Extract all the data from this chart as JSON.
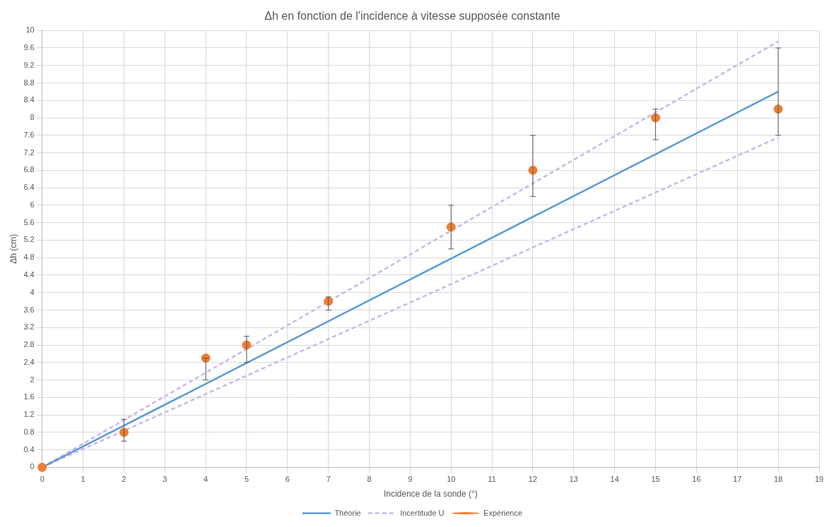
{
  "chart_data": {
    "type": "line",
    "title": "Δh en fonction de l'incidence à vitesse supposée constante",
    "xlabel": "Incidence de la sonde (°)",
    "ylabel": "Δh (cm)",
    "series": [
      {
        "name": "Théorie",
        "color": "#5b9bd5",
        "x": [
          0,
          18
        ],
        "values": [
          0,
          8.6
        ],
        "marker": "none",
        "line_style": "solid"
      },
      {
        "name": "Incertitude U",
        "color": "#c9b8e8",
        "x": [
          0,
          18
        ],
        "values": [
          0,
          9.75
        ],
        "marker": "none",
        "line_style": "dashed"
      },
      {
        "color": "#c9b8e8",
        "x": [
          0,
          18
        ],
        "values": [
          0,
          7.55
        ],
        "marker": "none",
        "line_style": "dashed"
      },
      {
        "name": "Expérience",
        "type": "scatter",
        "color": "#ed7d31",
        "x": [
          0,
          2,
          4,
          5,
          7,
          10,
          12,
          15,
          18
        ],
        "values": [
          0,
          0.8,
          2.5,
          2.8,
          3.8,
          5.5,
          6.8,
          8.0,
          8.2
        ],
        "marker": "circle",
        "errors": [
          null,
          [
            0.6,
            1.1
          ],
          [
            2.0,
            2.5
          ],
          [
            2.4,
            3.0
          ],
          [
            3.6,
            3.9
          ],
          [
            5.0,
            6.0
          ],
          [
            6.2,
            7.6
          ],
          [
            7.5,
            8.2
          ],
          [
            7.6,
            9.6
          ]
        ]
      }
    ],
    "xlim": [
      0,
      19
    ],
    "xticks": [
      0,
      1,
      2,
      3,
      4,
      5,
      6,
      7,
      8,
      9,
      10,
      11,
      12,
      13,
      14,
      15,
      16,
      17,
      18,
      19
    ],
    "ylim": [
      0,
      10
    ],
    "yticks": [
      0,
      0.4,
      0.8,
      1.2,
      1.6,
      2,
      2.4,
      2.8,
      3.2,
      3.6,
      4,
      4.4,
      4.8,
      5.2,
      5.6,
      6,
      6.4,
      6.8,
      7.2,
      7.6,
      8,
      8.4,
      8.8,
      9.2,
      9.6,
      10
    ],
    "grid": true,
    "legend": "bottom"
  }
}
